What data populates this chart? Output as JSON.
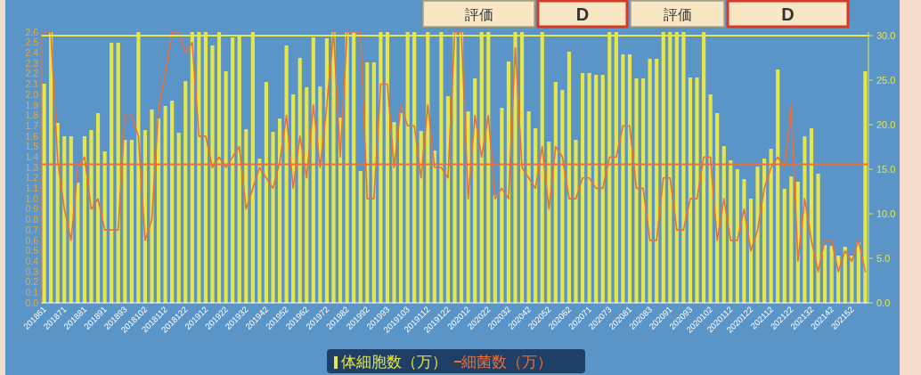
{
  "chart_data": {
    "type": "bar",
    "categories": [
      "201861",
      null,
      null,
      "201871",
      null,
      null,
      "201881",
      null,
      null,
      "201891",
      null,
      null,
      "201893",
      null,
      null,
      "2018102",
      null,
      null,
      "2018112",
      null,
      null,
      "2018122",
      null,
      null,
      "201912",
      null,
      null,
      "201922",
      null,
      null,
      "201932",
      null,
      null,
      "201942",
      null,
      null,
      "201952",
      null,
      null,
      "201962",
      null,
      null,
      "201972",
      null,
      null,
      "201982",
      null,
      null,
      "201992",
      null,
      null,
      "201993",
      null,
      null,
      "2019103",
      null,
      null,
      "2019112",
      null,
      null,
      "2019122",
      null,
      null,
      "202012",
      null,
      null,
      "202022",
      null,
      null,
      "202032",
      null,
      null,
      "202042",
      null,
      null,
      "202052",
      null,
      null,
      "202062",
      null,
      null,
      "202071",
      null,
      null,
      "202073",
      null,
      null,
      "202081",
      null,
      null,
      "202083",
      null,
      null,
      "202091",
      null,
      null,
      "202093",
      null,
      null,
      "2020102",
      null,
      null,
      "2020112",
      null,
      null,
      "2020122",
      null,
      null,
      "202112",
      null,
      null,
      "202122",
      null,
      null,
      "202132",
      null,
      null,
      "202142",
      null,
      null,
      "202152",
      null,
      null
    ],
    "series": [
      {
        "name": "体細胞数（万）",
        "axis": "y2",
        "color": "#e6e64a",
        "values": [
          24.6,
          30.4,
          20.2,
          18.7,
          18.7,
          13.5,
          18.7,
          19.4,
          21.3,
          17.0,
          29.2,
          29.2,
          18.3,
          18.3,
          30.4,
          19.4,
          21.7,
          20.7,
          22.1,
          22.7,
          19.1,
          24.9,
          30.4,
          30.4,
          30.4,
          28.9,
          30.4,
          26.0,
          29.8,
          30.0,
          19.5,
          30.4,
          16.2,
          24.8,
          19.2,
          20.7,
          28.9,
          23.4,
          27.5,
          24.2,
          29.8,
          24.3,
          29.7,
          30.4,
          20.8,
          30.4,
          30.4,
          14.8,
          27.0,
          27.0,
          30.4,
          30.4,
          20.3,
          21.3,
          30.4,
          30.4,
          19.3,
          30.4,
          17.1,
          30.4,
          23.2,
          30.4,
          30.4,
          21.5,
          25.2,
          30.4,
          30.4,
          12.1,
          21.9,
          27.1,
          30.4,
          30.4,
          21.5,
          19.6,
          30.4,
          18.1,
          24.8,
          23.9,
          28.2,
          18.3,
          25.8,
          25.8,
          25.6,
          25.6,
          30.4,
          30.4,
          27.9,
          27.9,
          25.2,
          25.2,
          27.4,
          27.4,
          30.4,
          30.4,
          30.4,
          30.4,
          25.3,
          25.3,
          30.4,
          23.4,
          21.3,
          17.6,
          16.0,
          15.0,
          13.9,
          11.7,
          15.3,
          16.2,
          17.3,
          26.2,
          12.8,
          14.2,
          13.6,
          18.7,
          19.6,
          14.5,
          6.5,
          6.4,
          5.3,
          6.3,
          5.3,
          6.8,
          26.0
        ]
      },
      {
        "name": "細菌数（万）",
        "type": "line",
        "axis": "y",
        "color": "#e8703a",
        "values": [
          2.6,
          2.6,
          1.37,
          0.9,
          0.6,
          1.3,
          1.4,
          0.9,
          1.0,
          0.7,
          0.7,
          0.7,
          1.8,
          1.8,
          1.6,
          0.6,
          0.8,
          1.87,
          2.2,
          2.6,
          2.6,
          2.4,
          2.5,
          1.6,
          1.6,
          1.3,
          1.4,
          1.3,
          1.4,
          1.5,
          0.9,
          1.1,
          1.3,
          1.2,
          1.1,
          1.35,
          1.8,
          1.1,
          1.6,
          1.2,
          1.9,
          1.3,
          1.9,
          2.6,
          1.4,
          2.6,
          2.6,
          2.6,
          1.0,
          1.0,
          2.1,
          2.1,
          1.3,
          1.9,
          1.7,
          1.7,
          1.2,
          1.9,
          1.3,
          1.3,
          1.2,
          2.6,
          2.6,
          1.0,
          1.8,
          1.4,
          1.8,
          1.0,
          1.1,
          1.0,
          2.45,
          1.3,
          1.2,
          1.1,
          1.5,
          0.9,
          1.5,
          1.4,
          1.0,
          1.0,
          1.2,
          1.2,
          1.1,
          1.1,
          1.4,
          1.4,
          1.7,
          1.7,
          1.1,
          1.1,
          0.6,
          0.6,
          1.2,
          1.2,
          0.7,
          0.7,
          1.0,
          1.0,
          1.4,
          1.4,
          0.6,
          1.0,
          0.6,
          0.6,
          0.9,
          0.5,
          0.7,
          1.1,
          1.3,
          1.4,
          1.3,
          1.9,
          0.4,
          1.0,
          0.6,
          0.3,
          0.6,
          0.6,
          0.3,
          0.5,
          0.4,
          0.6,
          0.3
        ]
      }
    ],
    "ylim": [
      0,
      2.6
    ],
    "yticks": [
      {
        "value": 0,
        "label": "0.0"
      },
      {
        "value": 0.1,
        "label": "0.1"
      },
      {
        "value": 0.2,
        "label": "0.2"
      },
      {
        "value": 0.3,
        "label": "0.3"
      },
      {
        "value": 0.4,
        "label": "0.4"
      },
      {
        "value": 0.5,
        "label": "0.5"
      },
      {
        "value": 0.6,
        "label": "0.6"
      },
      {
        "value": 0.7,
        "label": "0.7"
      },
      {
        "value": 0.8,
        "label": "0.8"
      },
      {
        "value": 0.9,
        "label": "0.9"
      },
      {
        "value": 1,
        "label": "1.0"
      },
      {
        "value": 1.1,
        "label": "1.1"
      },
      {
        "value": 1.2,
        "label": "1.2"
      },
      {
        "value": 1.3,
        "label": "1.3"
      },
      {
        "value": 1.4,
        "label": "1.4"
      },
      {
        "value": 1.5,
        "label": "1.5"
      },
      {
        "value": 1.6,
        "label": "1.6"
      },
      {
        "value": 1.7,
        "label": "1.7"
      },
      {
        "value": 1.8,
        "label": "1.8"
      },
      {
        "value": 1.9,
        "label": "1.9"
      },
      {
        "value": 2,
        "label": "2.0"
      },
      {
        "value": 2.1,
        "label": "2.1"
      },
      {
        "value": 2.2,
        "label": "2.2"
      },
      {
        "value": 2.3,
        "label": "2.3"
      },
      {
        "value": 2.4,
        "label": "2.4"
      },
      {
        "value": 2.5,
        "label": "2.5"
      },
      {
        "value": 2.6,
        "label": "2.6"
      }
    ],
    "y2lim": [
      0,
      30.4
    ],
    "y2ticks": [
      {
        "value": 0,
        "label": "0.0"
      },
      {
        "value": 5,
        "label": "5.0"
      },
      {
        "value": 10,
        "label": "10.0"
      },
      {
        "value": 15,
        "label": "15.0"
      },
      {
        "value": 20,
        "label": "20.0"
      },
      {
        "value": 25,
        "label": "25.0"
      },
      {
        "value": 30,
        "label": "30.0"
      }
    ],
    "ref_lines": [
      {
        "axis": "y",
        "value": 1.33,
        "color": "#e8703a"
      },
      {
        "axis": "y2",
        "value": 30,
        "color": "#e6e64a"
      }
    ],
    "annotations": [
      "評価",
      "D",
      "評価",
      "D"
    ],
    "legend": "bottom"
  }
}
